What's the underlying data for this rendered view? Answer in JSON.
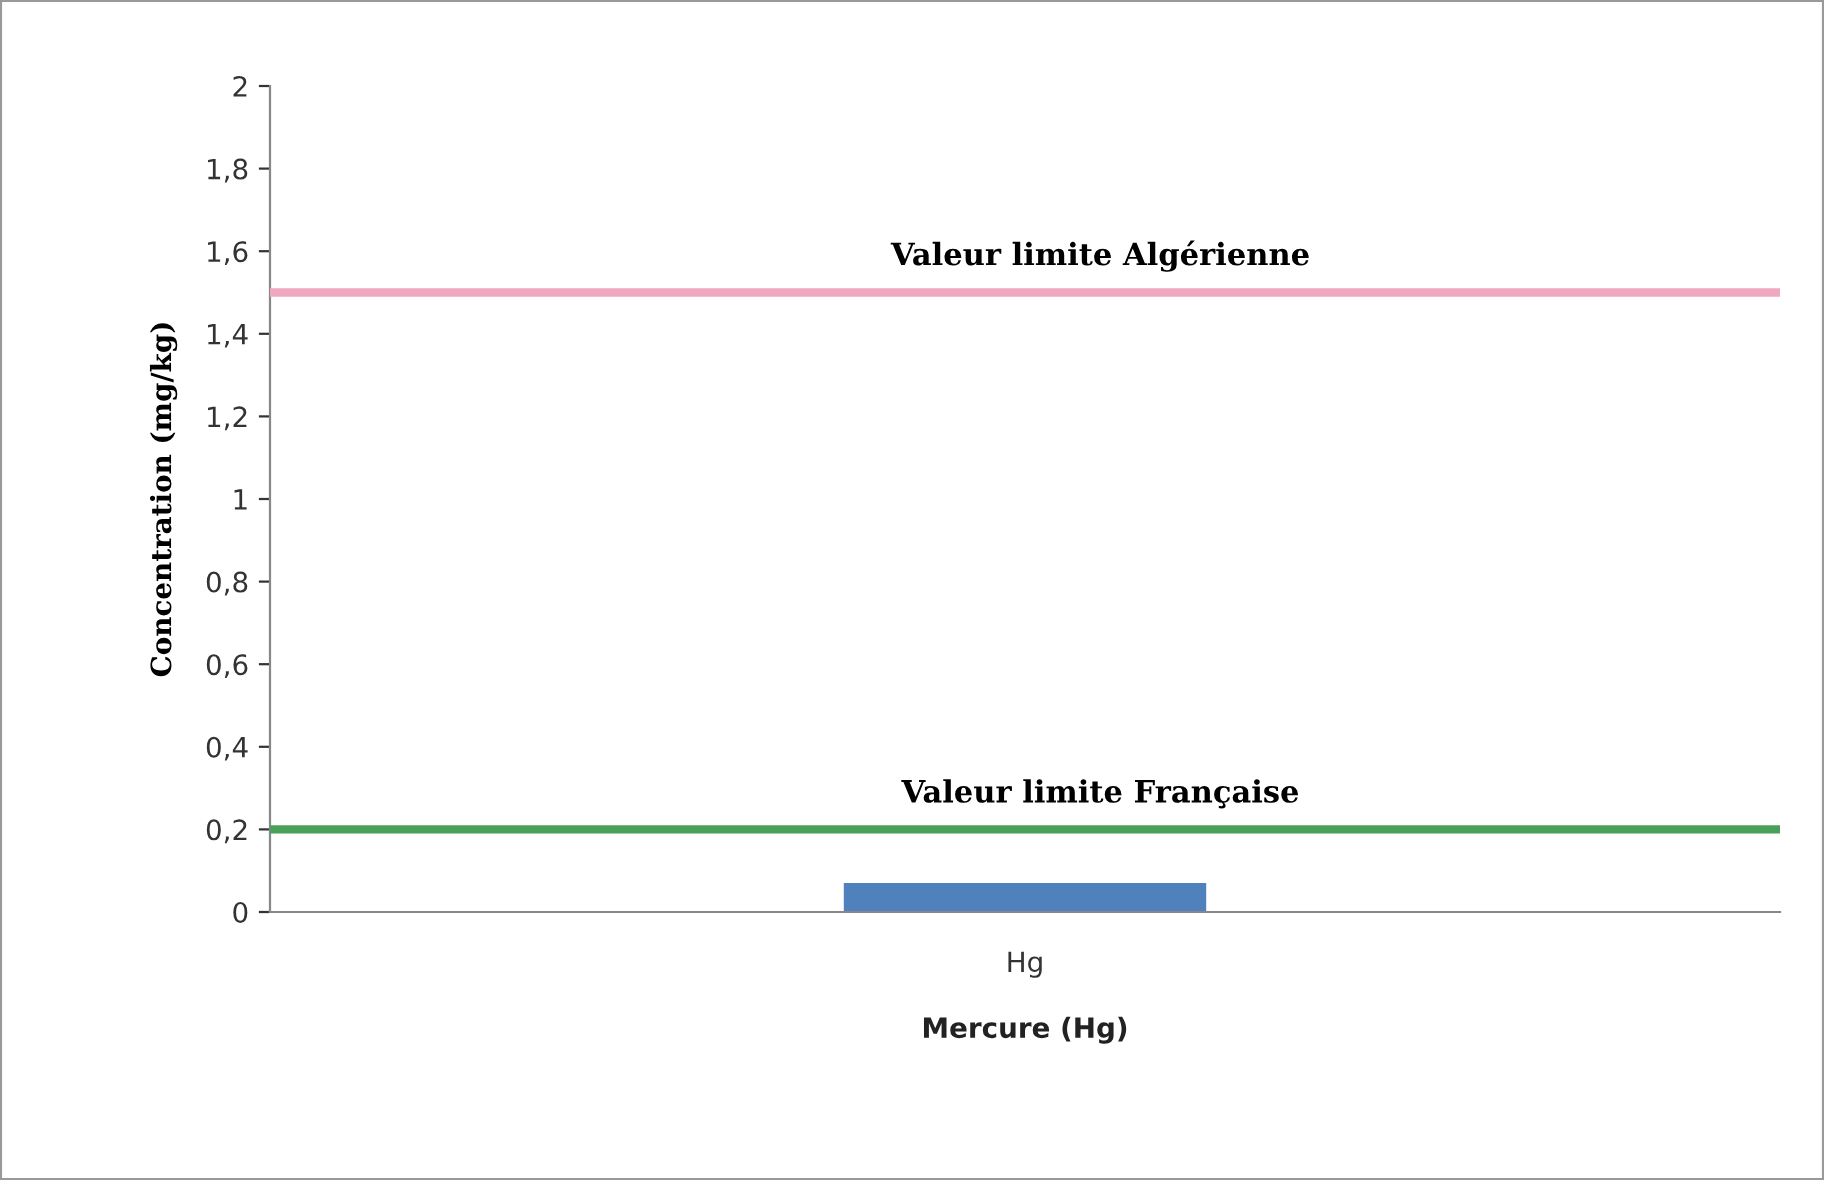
{
  "chart_data": {
    "type": "bar",
    "xlabel": "Mercure (Hg)",
    "ylabel": "Concentration (mg/kg)",
    "categories": [
      "Hg"
    ],
    "values": [
      0.07
    ],
    "color": "#4f81bd",
    "ylim": [
      0,
      2
    ],
    "yticks": [
      0,
      {
        "value": 0.2,
        "label": "0,2"
      },
      {
        "value": 0.4,
        "label": "0,4"
      },
      {
        "value": 0.6,
        "label": "0,6"
      },
      {
        "value": 0.8,
        "label": "0,8"
      },
      1,
      {
        "value": 1.2,
        "label": "1,2"
      },
      {
        "value": 1.4,
        "label": "1,4"
      },
      {
        "value": 1.6,
        "label": "1,6"
      },
      {
        "value": 1.8,
        "label": "1,8"
      },
      2
    ],
    "ref_lines": [
      {
        "axis": "y",
        "value": 0.2,
        "label": "Valeur limite Française",
        "color": "#4aa05a"
      },
      {
        "axis": "y",
        "value": 1.5,
        "label": "Valeur limite Algérienne",
        "color": "#f0a8c0"
      }
    ],
    "grid": false,
    "legend": false
  }
}
